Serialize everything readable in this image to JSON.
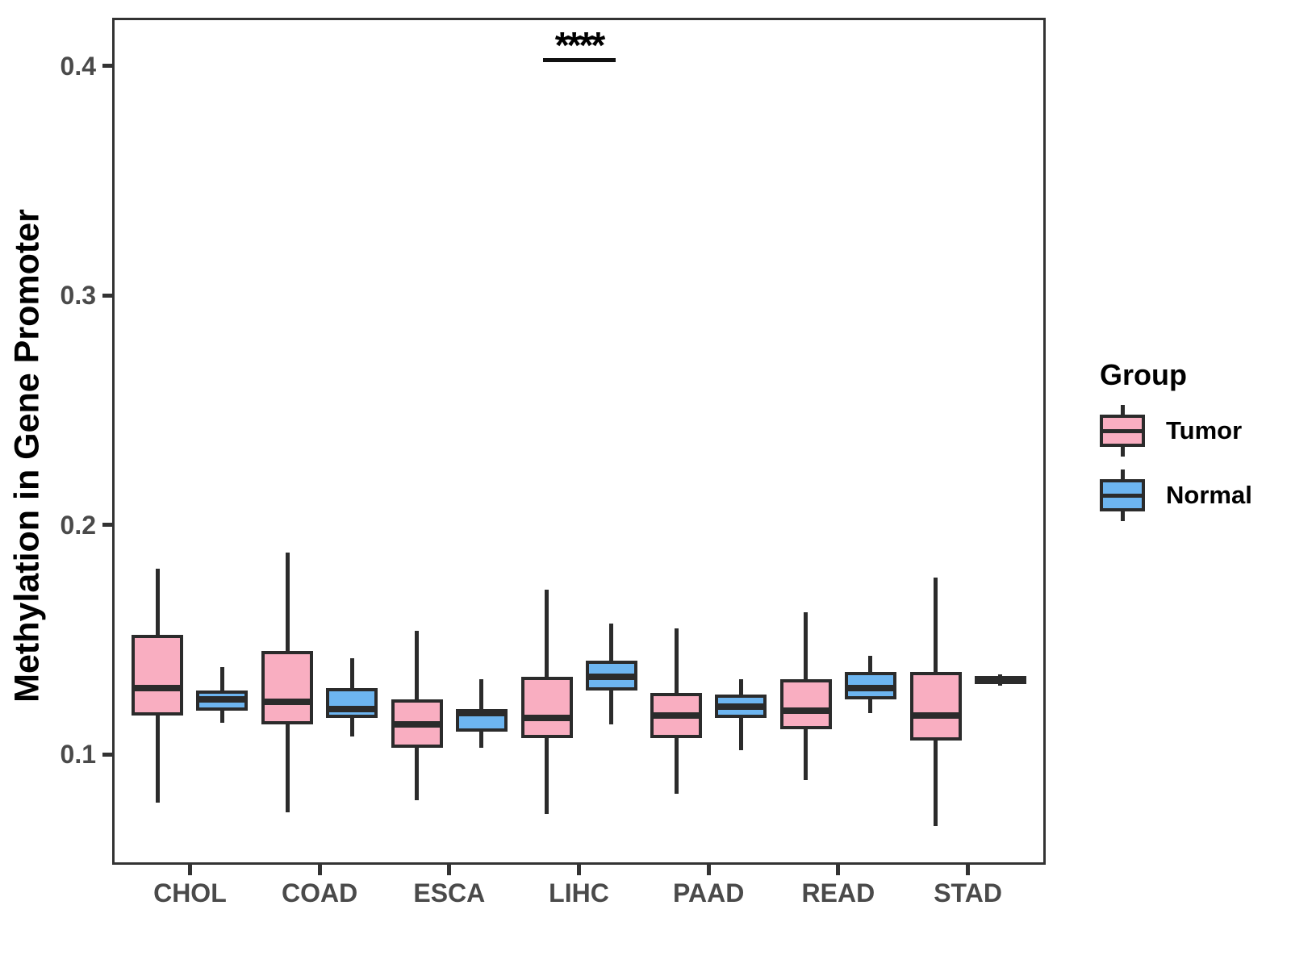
{
  "figure": {
    "y_axis_title": "Methylation in Gene Promoter"
  },
  "legend": {
    "title": "Group",
    "entries": [
      {
        "label": "Tumor"
      },
      {
        "label": "Normal"
      }
    ]
  },
  "colors": {
    "tumor_fill": "#F9AEC1",
    "normal_fill": "#6DB5F0",
    "box_border": "#2b2b2b",
    "panel_border": "#333333",
    "tick_text": "#4a4a4a",
    "title_text": "#000000"
  },
  "chart_data": {
    "type": "boxplot",
    "title": "",
    "xlabel": "",
    "ylabel": "Methylation in Gene Promoter",
    "categories": [
      "CHOL",
      "COAD",
      "ESCA",
      "LIHC",
      "PAAD",
      "READ",
      "STAD"
    ],
    "ylim": [
      0.052,
      0.421
    ],
    "yticks": [
      "0.1",
      "0.2",
      "0.3",
      "0.4"
    ],
    "ytick_values": [
      0.1,
      0.2,
      0.3,
      0.4
    ],
    "grid": "off",
    "legend_position": "right",
    "series": [
      {
        "name": "Tumor",
        "fill": "#F9AEC1",
        "boxes": [
          {
            "low": 0.079,
            "q1": 0.117,
            "median": 0.129,
            "q3": 0.152,
            "high": 0.181
          },
          {
            "low": 0.075,
            "q1": 0.113,
            "median": 0.123,
            "q3": 0.145,
            "high": 0.188
          },
          {
            "low": 0.08,
            "q1": 0.103,
            "median": 0.113,
            "q3": 0.124,
            "high": 0.154
          },
          {
            "low": 0.074,
            "q1": 0.107,
            "median": 0.116,
            "q3": 0.134,
            "high": 0.172
          },
          {
            "low": 0.083,
            "q1": 0.107,
            "median": 0.117,
            "q3": 0.127,
            "high": 0.155
          },
          {
            "low": 0.089,
            "q1": 0.111,
            "median": 0.119,
            "q3": 0.133,
            "high": 0.162
          },
          {
            "low": 0.069,
            "q1": 0.106,
            "median": 0.117,
            "q3": 0.136,
            "high": 0.177
          }
        ]
      },
      {
        "name": "Normal",
        "fill": "#6DB5F0",
        "boxes": [
          {
            "low": 0.114,
            "q1": 0.119,
            "median": 0.124,
            "q3": 0.128,
            "high": 0.138
          },
          {
            "low": 0.108,
            "q1": 0.116,
            "median": 0.12,
            "q3": 0.129,
            "high": 0.142
          },
          {
            "low": 0.103,
            "q1": 0.11,
            "median": 0.118,
            "q3": 0.12,
            "high": 0.133
          },
          {
            "low": 0.113,
            "q1": 0.128,
            "median": 0.134,
            "q3": 0.141,
            "high": 0.157
          },
          {
            "low": 0.102,
            "q1": 0.116,
            "median": 0.121,
            "q3": 0.126,
            "high": 0.133
          },
          {
            "low": 0.118,
            "q1": 0.124,
            "median": 0.129,
            "q3": 0.136,
            "high": 0.143
          },
          {
            "low": 0.13,
            "q1": 0.131,
            "median": 0.133,
            "q3": 0.134,
            "high": 0.135
          }
        ]
      }
    ],
    "significance": [
      {
        "category": "LIHC",
        "label": "****"
      }
    ]
  }
}
